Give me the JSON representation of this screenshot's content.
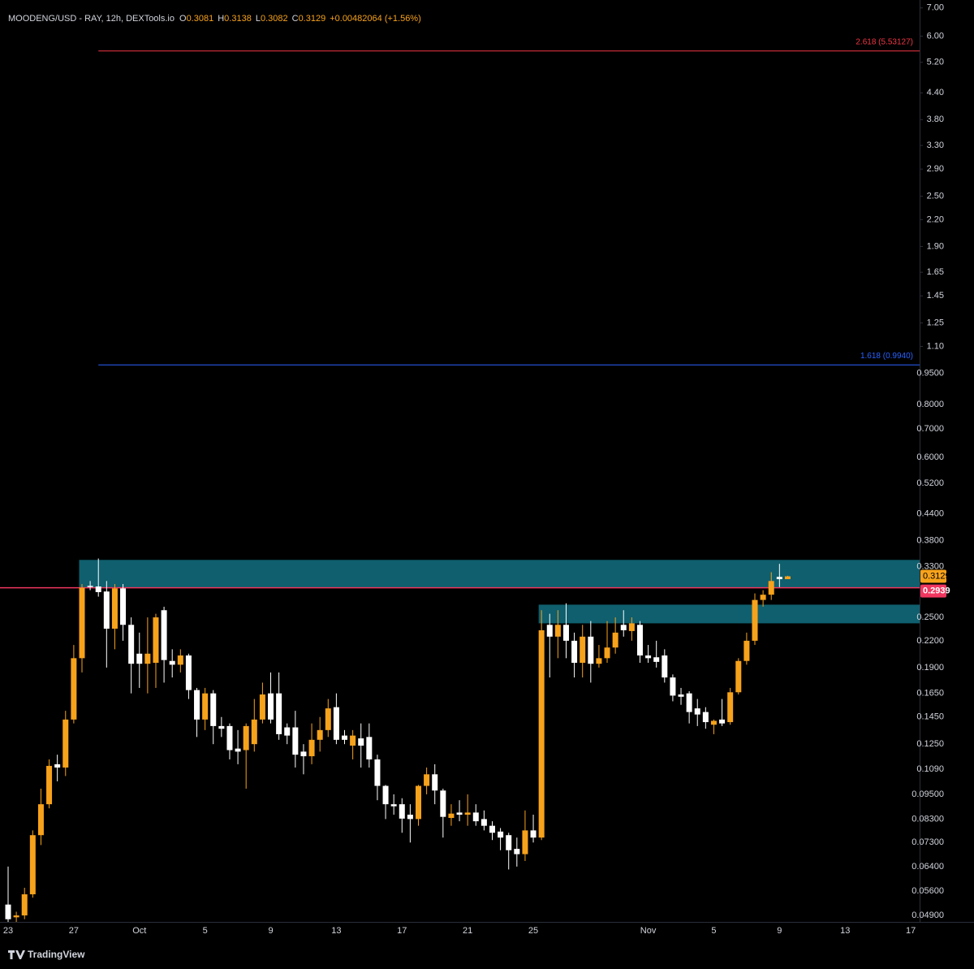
{
  "header": {
    "title": "MOODENG/USD - RAY, 12h, DEXTools.io",
    "fields": [
      {
        "key": "O",
        "value": 0.3081
      },
      {
        "key": "H",
        "value": 0.3138
      },
      {
        "key": "L",
        "value": 0.3082
      },
      {
        "key": "C",
        "value": 0.3129
      }
    ],
    "change": "+0.00482064 (+1.56%)"
  },
  "footer": {
    "brand": "TradingView"
  },
  "chart_data": {
    "type": "candlestick",
    "log_scale": true,
    "grid": false,
    "up_color": "#f7a21b",
    "down_color": "#ffffff",
    "categories": [
      "23",
      null,
      null,
      null,
      null,
      null,
      null,
      null,
      "27",
      null,
      null,
      null,
      null,
      null,
      null,
      null,
      "Oct",
      null,
      null,
      null,
      null,
      null,
      null,
      null,
      "5",
      null,
      null,
      null,
      null,
      null,
      null,
      null,
      "9",
      null,
      null,
      null,
      null,
      null,
      null,
      null,
      "13",
      null,
      null,
      null,
      null,
      null,
      null,
      null,
      "17",
      null,
      null,
      null,
      null,
      null,
      null,
      null,
      "21",
      null,
      null,
      null,
      null,
      null,
      null,
      null,
      "25",
      null,
      null,
      null,
      null,
      null,
      null,
      null,
      null,
      null,
      null,
      null,
      null,
      null,
      "Nov",
      null,
      null,
      null,
      null,
      null,
      null,
      null,
      "5",
      null,
      null,
      null,
      null,
      null,
      null,
      null,
      "9",
      null,
      null,
      null,
      null,
      null,
      null,
      null,
      "13",
      null,
      null,
      null,
      null,
      null,
      null,
      null,
      "17"
    ],
    "open": [
      0.052,
      0.0485,
      0.049,
      0.055,
      0.076,
      0.09,
      0.112,
      0.11,
      0.143,
      0.2,
      0.297,
      0.296,
      0.288,
      0.235,
      0.293,
      0.24,
      0.205,
      0.194,
      0.195,
      0.26,
      0.197,
      0.193,
      0.203,
      0.168,
      0.143,
      0.165,
      0.138,
      0.138,
      0.122,
      0.121,
      0.125,
      0.143,
      0.165,
      0.165,
      0.137,
      0.137,
      0.12,
      0.117,
      0.128,
      0.135,
      0.153,
      0.131,
      0.124,
      0.129,
      0.13,
      0.115,
      0.0995,
      0.09,
      0.09,
      0.085,
      0.083,
      0.0995,
      0.106,
      0.097,
      0.0835,
      0.086,
      0.085,
      0.086,
      0.083,
      0.08,
      0.0775,
      0.076,
      0.0705,
      0.0685,
      0.078,
      0.075,
      0.24,
      0.225,
      0.24,
      0.22,
      0.195,
      0.225,
      0.194,
      0.2,
      0.212,
      0.24,
      0.232,
      0.24,
      0.203,
      0.201,
      0.203,
      0.18,
      0.164,
      0.165,
      0.152,
      0.149,
      0.139,
      0.143,
      0.141,
      0.166,
      0.197,
      0.22,
      0.275,
      0.283,
      0.312,
      0.3081,
      null,
      null,
      null,
      null,
      null,
      null,
      null,
      null,
      null,
      null,
      null,
      null,
      null,
      null,
      null
    ],
    "high": [
      0.064,
      0.05,
      0.057,
      0.078,
      0.098,
      0.115,
      0.118,
      0.15,
      0.215,
      0.3,
      0.305,
      0.345,
      0.305,
      0.3,
      0.3,
      0.25,
      0.23,
      0.25,
      0.255,
      0.265,
      0.21,
      0.21,
      0.205,
      0.17,
      0.17,
      0.168,
      0.145,
      0.14,
      0.135,
      0.14,
      0.16,
      0.175,
      0.185,
      0.185,
      0.14,
      0.15,
      0.125,
      0.14,
      0.145,
      0.16,
      0.165,
      0.135,
      0.135,
      0.14,
      0.14,
      0.118,
      0.1,
      0.095,
      0.093,
      0.09,
      0.1,
      0.11,
      0.112,
      0.098,
      0.09,
      0.092,
      0.095,
      0.09,
      0.087,
      0.082,
      0.079,
      0.077,
      0.075,
      0.087,
      0.085,
      0.26,
      0.255,
      0.26,
      0.27,
      0.23,
      0.24,
      0.245,
      0.215,
      0.245,
      0.25,
      0.26,
      0.25,
      0.245,
      0.215,
      0.22,
      0.21,
      0.183,
      0.17,
      0.167,
      0.16,
      0.153,
      0.143,
      0.16,
      0.17,
      0.2,
      0.23,
      0.285,
      0.29,
      0.32,
      0.335,
      0.3138,
      null,
      null,
      null,
      null,
      null,
      null,
      null,
      null,
      null,
      null,
      null,
      null,
      null,
      null,
      null
    ],
    "low": [
      0.047,
      0.047,
      0.048,
      0.054,
      0.072,
      0.088,
      0.102,
      0.105,
      0.14,
      0.185,
      0.29,
      0.28,
      0.19,
      0.21,
      0.22,
      0.165,
      0.17,
      0.165,
      0.17,
      0.175,
      0.18,
      0.185,
      0.16,
      0.13,
      0.135,
      0.125,
      0.13,
      0.115,
      0.112,
      0.098,
      0.12,
      0.14,
      0.14,
      0.128,
      0.125,
      0.11,
      0.106,
      0.112,
      0.12,
      0.13,
      0.125,
      0.125,
      0.115,
      0.11,
      0.11,
      0.092,
      0.083,
      0.085,
      0.077,
      0.073,
      0.08,
      0.095,
      0.09,
      0.075,
      0.08,
      0.082,
      0.08,
      0.08,
      0.078,
      0.074,
      0.07,
      0.063,
      0.064,
      0.066,
      0.073,
      0.074,
      0.18,
      0.2,
      0.2,
      0.18,
      0.18,
      0.175,
      0.19,
      0.195,
      0.205,
      0.225,
      0.22,
      0.195,
      0.195,
      0.19,
      0.175,
      0.158,
      0.155,
      0.14,
      0.138,
      0.136,
      0.132,
      0.138,
      0.139,
      0.164,
      0.193,
      0.215,
      0.265,
      0.275,
      0.295,
      0.3082,
      null,
      null,
      null,
      null,
      null,
      null,
      null,
      null,
      null,
      null,
      null,
      null,
      null,
      null,
      null
    ],
    "close": [
      0.048,
      0.049,
      0.055,
      0.076,
      0.09,
      0.111,
      0.11,
      0.143,
      0.2,
      0.294,
      0.295,
      0.287,
      0.235,
      0.293,
      0.24,
      0.194,
      0.194,
      0.205,
      0.25,
      0.198,
      0.193,
      0.203,
      0.168,
      0.143,
      0.165,
      0.138,
      0.136,
      0.121,
      0.12,
      0.138,
      0.143,
      0.164,
      0.143,
      0.132,
      0.131,
      0.118,
      0.117,
      0.128,
      0.135,
      0.152,
      0.128,
      0.128,
      0.131,
      0.124,
      0.115,
      0.0995,
      0.09,
      0.089,
      0.0832,
      0.083,
      0.0995,
      0.106,
      0.097,
      0.084,
      0.0855,
      0.085,
      0.086,
      0.082,
      0.08,
      0.077,
      0.075,
      0.07,
      0.0685,
      0.078,
      0.075,
      0.233,
      0.225,
      0.24,
      0.22,
      0.195,
      0.225,
      0.194,
      0.2,
      0.212,
      0.23,
      0.233,
      0.242,
      0.203,
      0.2,
      0.196,
      0.18,
      0.163,
      0.162,
      0.149,
      0.147,
      0.141,
      0.142,
      0.14,
      0.166,
      0.197,
      0.22,
      0.275,
      0.283,
      0.305,
      0.3081,
      0.3129,
      null,
      null,
      null,
      null,
      null,
      null,
      null,
      null,
      null,
      null,
      null,
      null,
      null,
      null,
      null
    ],
    "ylim": [
      0.0473,
      7.31
    ],
    "yticks": [
      {
        "value": 7,
        "label": "7.00"
      },
      {
        "value": 6,
        "label": "6.00"
      },
      {
        "value": 5.2,
        "label": "5.20"
      },
      {
        "value": 4.4,
        "label": "4.40"
      },
      {
        "value": 3.8,
        "label": "3.80"
      },
      {
        "value": 3.3,
        "label": "3.30"
      },
      {
        "value": 2.9,
        "label": "2.90"
      },
      {
        "value": 2.5,
        "label": "2.50"
      },
      {
        "value": 2.2,
        "label": "2.20"
      },
      {
        "value": 1.9,
        "label": "1.90"
      },
      1.65,
      1.45,
      1.25,
      {
        "value": 1.1,
        "label": "1.10"
      },
      {
        "value": 0.95,
        "label": "0.9500"
      },
      {
        "value": 0.8,
        "label": "0.8000"
      },
      {
        "value": 0.7,
        "label": "0.7000"
      },
      {
        "value": 0.6,
        "label": "0.6000"
      },
      {
        "value": 0.52,
        "label": "0.5200"
      },
      {
        "value": 0.44,
        "label": "0.4400"
      },
      {
        "value": 0.38,
        "label": "0.3800"
      },
      {
        "value": 0.33,
        "label": "0.3300"
      },
      {
        "value": 0.25,
        "label": "0.2500"
      },
      {
        "value": 0.22,
        "label": "0.2200"
      },
      {
        "value": 0.19,
        "label": "0.1900"
      },
      {
        "value": 0.165,
        "label": "0.1650"
      },
      {
        "value": 0.145,
        "label": "0.1450"
      },
      {
        "value": 0.125,
        "label": "0.1250"
      },
      {
        "value": 0.109,
        "label": "0.1090"
      },
      {
        "value": 0.095,
        "label": "0.09500"
      },
      {
        "value": 0.083,
        "label": "0.08300"
      },
      {
        "value": 0.073,
        "label": "0.07300"
      },
      {
        "value": 0.064,
        "label": "0.06400"
      },
      {
        "value": 0.056,
        "label": "0.05600"
      },
      {
        "value": 0.049,
        "label": "0.04900"
      }
    ],
    "zones": [
      {
        "low": 0.2939,
        "high": 0.3423,
        "start": 9,
        "color": "#0f5f6e"
      },
      {
        "low": 0.242,
        "high": 0.268,
        "start": 65,
        "color": "#0f5f6e"
      }
    ],
    "fib_levels": [
      {
        "label": "2.618 (5.53127)",
        "value": 5.53127,
        "start": 11,
        "color": "#f23645"
      },
      {
        "label": "1.618 (0.9940)",
        "value": 0.994,
        "start": 11,
        "color": "#2962ff"
      }
    ],
    "price_line": {
      "value": 0.2939,
      "color": "#f0365f"
    }
  }
}
